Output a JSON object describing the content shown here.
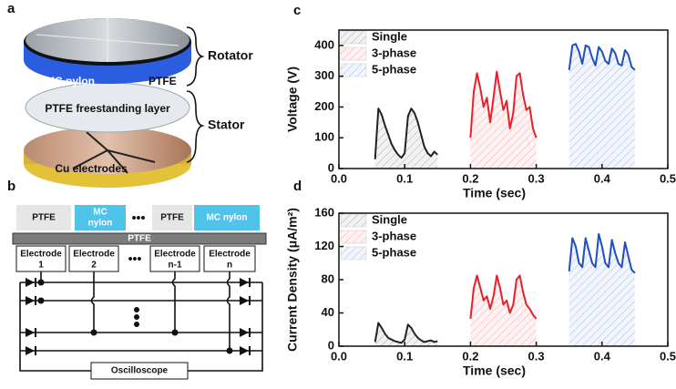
{
  "figure": {
    "panel_a": {
      "label": "a",
      "rotator": "Rotator",
      "stator": "Stator",
      "mc_nylon": "MC nylon",
      "ptfe": "PTFE",
      "layer": "PTFE freestanding layer",
      "electrodes": "Cu electrodes"
    },
    "panel_b": {
      "label": "b",
      "top_row": [
        "PTFE",
        "MC nylon",
        "PTFE",
        "MC nylon"
      ],
      "top_row_mc_first": [
        "MC",
        "nylon"
      ],
      "dots": "•••",
      "bar": "PTFE",
      "electrodes": [
        [
          "Electrode",
          "1"
        ],
        [
          "Electrode",
          "2"
        ],
        [
          "Electrode",
          "n-1"
        ],
        [
          "Electrode",
          "n"
        ]
      ],
      "scope": "Oscilloscope"
    }
  },
  "chart_data": [
    {
      "type": "line",
      "panel_label": "c",
      "xlabel": "Time (sec)",
      "ylabel": "Voltage (V)",
      "legend": "upper left",
      "xlim": [
        0,
        0.5
      ],
      "xticks": [
        {
          "value": 0,
          "label": "0.0"
        },
        0.1,
        0.2,
        0.3,
        0.4,
        0.5
      ],
      "ylim": [
        0,
        450
      ],
      "yticks": [
        0,
        100,
        200,
        300,
        400
      ],
      "series": [
        {
          "name": "Single",
          "color": "#222222",
          "x": [
            0.055,
            0.06,
            0.065,
            0.07,
            0.075,
            0.08,
            0.085,
            0.09,
            0.095,
            0.1,
            0.105,
            0.11,
            0.115,
            0.12,
            0.125,
            0.13,
            0.135,
            0.14,
            0.145,
            0.15
          ],
          "values": [
            30,
            195,
            175,
            140,
            110,
            80,
            60,
            45,
            35,
            50,
            170,
            195,
            180,
            150,
            110,
            70,
            50,
            40,
            55,
            45
          ]
        },
        {
          "name": "3-phase",
          "color": "#e8202a",
          "x": [
            0.2,
            0.205,
            0.21,
            0.215,
            0.22,
            0.225,
            0.23,
            0.235,
            0.24,
            0.245,
            0.25,
            0.255,
            0.26,
            0.265,
            0.27,
            0.275,
            0.28,
            0.285,
            0.29,
            0.295,
            0.3
          ],
          "values": [
            100,
            250,
            310,
            260,
            200,
            230,
            150,
            230,
            315,
            250,
            190,
            220,
            130,
            180,
            300,
            310,
            240,
            190,
            200,
            130,
            100
          ]
        },
        {
          "name": "5-phase",
          "color": "#1f4fc0",
          "x": [
            0.35,
            0.355,
            0.36,
            0.365,
            0.37,
            0.375,
            0.38,
            0.385,
            0.39,
            0.395,
            0.4,
            0.405,
            0.41,
            0.415,
            0.42,
            0.425,
            0.43,
            0.435,
            0.44,
            0.445,
            0.45
          ],
          "values": [
            320,
            400,
            405,
            380,
            340,
            400,
            395,
            360,
            335,
            395,
            380,
            350,
            340,
            390,
            375,
            340,
            335,
            385,
            370,
            330,
            320
          ]
        }
      ]
    },
    {
      "type": "line",
      "panel_label": "d",
      "xlabel": "Time (sec)",
      "ylabel": "Current Density (μA/m²)",
      "legend": "upper left",
      "xlim": [
        0,
        0.5
      ],
      "xticks": [
        {
          "value": 0,
          "label": "0.0"
        },
        0.1,
        0.2,
        0.3,
        0.4,
        0.5
      ],
      "ylim": [
        0,
        160
      ],
      "yticks": [
        0,
        40,
        80,
        120,
        160
      ],
      "series": [
        {
          "name": "Single",
          "color": "#222222",
          "x": [
            0.055,
            0.06,
            0.065,
            0.07,
            0.075,
            0.08,
            0.085,
            0.09,
            0.095,
            0.1,
            0.105,
            0.11,
            0.115,
            0.12,
            0.125,
            0.13,
            0.135,
            0.14,
            0.145,
            0.15
          ],
          "values": [
            5,
            28,
            22,
            15,
            10,
            8,
            6,
            5,
            4,
            8,
            26,
            22,
            15,
            10,
            7,
            5,
            6,
            7,
            5,
            6
          ]
        },
        {
          "name": "3-phase",
          "color": "#e8202a",
          "x": [
            0.2,
            0.205,
            0.21,
            0.215,
            0.22,
            0.225,
            0.23,
            0.235,
            0.24,
            0.245,
            0.25,
            0.255,
            0.26,
            0.265,
            0.27,
            0.275,
            0.28,
            0.285,
            0.29,
            0.295,
            0.3
          ],
          "values": [
            33,
            70,
            85,
            70,
            55,
            60,
            45,
            60,
            85,
            70,
            50,
            55,
            40,
            50,
            80,
            85,
            65,
            50,
            45,
            38,
            33
          ]
        },
        {
          "name": "5-phase",
          "color": "#1f4fc0",
          "x": [
            0.35,
            0.355,
            0.36,
            0.365,
            0.37,
            0.375,
            0.38,
            0.385,
            0.39,
            0.395,
            0.4,
            0.405,
            0.41,
            0.415,
            0.42,
            0.425,
            0.43,
            0.435,
            0.44,
            0.445,
            0.45
          ],
          "values": [
            90,
            130,
            120,
            100,
            95,
            130,
            115,
            100,
            95,
            135,
            120,
            100,
            95,
            128,
            112,
            100,
            95,
            125,
            108,
            92,
            88
          ]
        }
      ]
    }
  ]
}
